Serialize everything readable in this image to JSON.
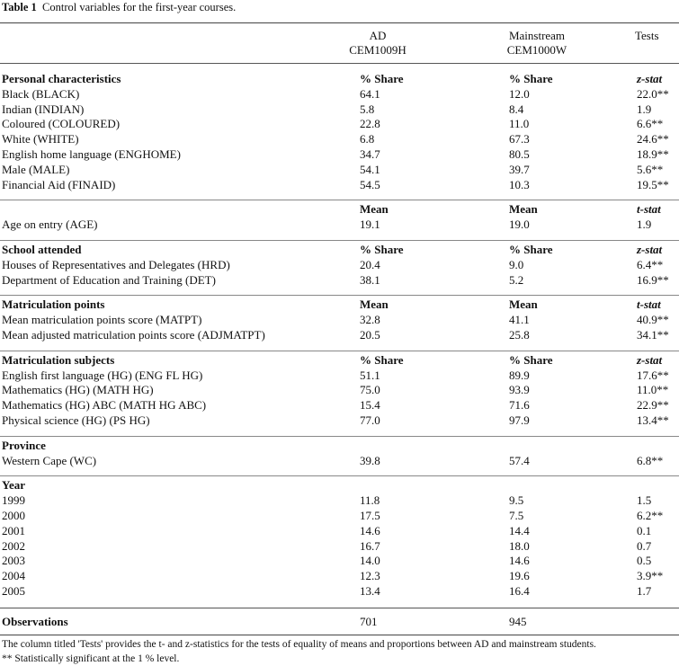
{
  "caption": {
    "label": "Table 1",
    "text": "Control variables for the first-year courses."
  },
  "columns": {
    "ad": [
      "AD",
      "CEM1009H"
    ],
    "mainstream": [
      "Mainstream",
      "CEM1000W"
    ],
    "tests": "Tests"
  },
  "sections": [
    {
      "header": [
        "Personal characteristics",
        "% Share",
        "% Share",
        "z-stat"
      ],
      "rows": [
        [
          "Black (BLACK)",
          "64.1",
          "12.0",
          "22.0**"
        ],
        [
          "Indian (INDIAN)",
          "5.8",
          "8.4",
          "1.9"
        ],
        [
          "Coloured (COLOURED)",
          "22.8",
          "11.0",
          "6.6**"
        ],
        [
          "White (WHITE)",
          "6.8",
          "67.3",
          "24.6**"
        ],
        [
          "English home language (ENGHOME)",
          "34.7",
          "80.5",
          "18.9**"
        ],
        [
          "Male (MALE)",
          "54.1",
          "39.7",
          "5.6**"
        ],
        [
          "Financial Aid (FINAID)",
          "54.5",
          "10.3",
          "19.5**"
        ]
      ]
    },
    {
      "header": [
        "",
        "Mean",
        "Mean",
        "t-stat"
      ],
      "rows": [
        [
          "Age on entry (AGE)",
          "19.1",
          "19.0",
          "1.9"
        ]
      ]
    },
    {
      "header": [
        "School attended",
        "% Share",
        "% Share",
        "z-stat"
      ],
      "rows": [
        [
          "Houses of Representatives and Delegates (HRD)",
          "20.4",
          "9.0",
          "6.4**"
        ],
        [
          "Department of Education and Training (DET)",
          "38.1",
          "5.2",
          "16.9**"
        ]
      ]
    },
    {
      "header": [
        "Matriculation points",
        "Mean",
        "Mean",
        "t-stat"
      ],
      "rows": [
        [
          "Mean matriculation points score (MATPT)",
          "32.8",
          "41.1",
          "40.9**"
        ],
        [
          "Mean adjusted matriculation points score (ADJMATPT)",
          "20.5",
          "25.8",
          "34.1**"
        ]
      ]
    },
    {
      "header": [
        "Matriculation subjects",
        "% Share",
        "% Share",
        "z-stat"
      ],
      "rows": [
        [
          "English first language (HG) (ENG FL HG)",
          "51.1",
          "89.9",
          "17.6**"
        ],
        [
          "Mathematics (HG) (MATH HG)",
          "75.0",
          "93.9",
          "11.0**"
        ],
        [
          "Mathematics (HG) ABC (MATH HG ABC)",
          "15.4",
          "71.6",
          "22.9**"
        ],
        [
          "Physical science (HG) (PS HG)",
          "77.0",
          "97.9",
          "13.4**"
        ]
      ]
    },
    {
      "header": [
        "Province",
        "",
        "",
        ""
      ],
      "rows": [
        [
          "Western Cape (WC)",
          "39.8",
          "57.4",
          "6.8**"
        ]
      ]
    },
    {
      "header": [
        "Year",
        "",
        "",
        ""
      ],
      "rows": [
        [
          "1999",
          "11.8",
          "9.5",
          "1.5"
        ],
        [
          "2000",
          "17.5",
          "7.5",
          "6.2**"
        ],
        [
          "2001",
          "14.6",
          "14.4",
          "0.1"
        ],
        [
          "2002",
          "16.7",
          "18.0",
          "0.7"
        ],
        [
          "2003",
          "14.0",
          "14.6",
          "0.5"
        ],
        [
          "2004",
          "12.3",
          "19.6",
          "3.9**"
        ],
        [
          "2005",
          "13.4",
          "16.4",
          "1.7"
        ]
      ]
    }
  ],
  "observations": {
    "label": "Observations",
    "ad": "701",
    "mainstream": "945"
  },
  "notes": [
    "The column titled 'Tests' provides the t- and z-statistics for the tests of equality of means and proportions between AD and mainstream students.",
    "** Statistically significant at the 1 % level."
  ]
}
